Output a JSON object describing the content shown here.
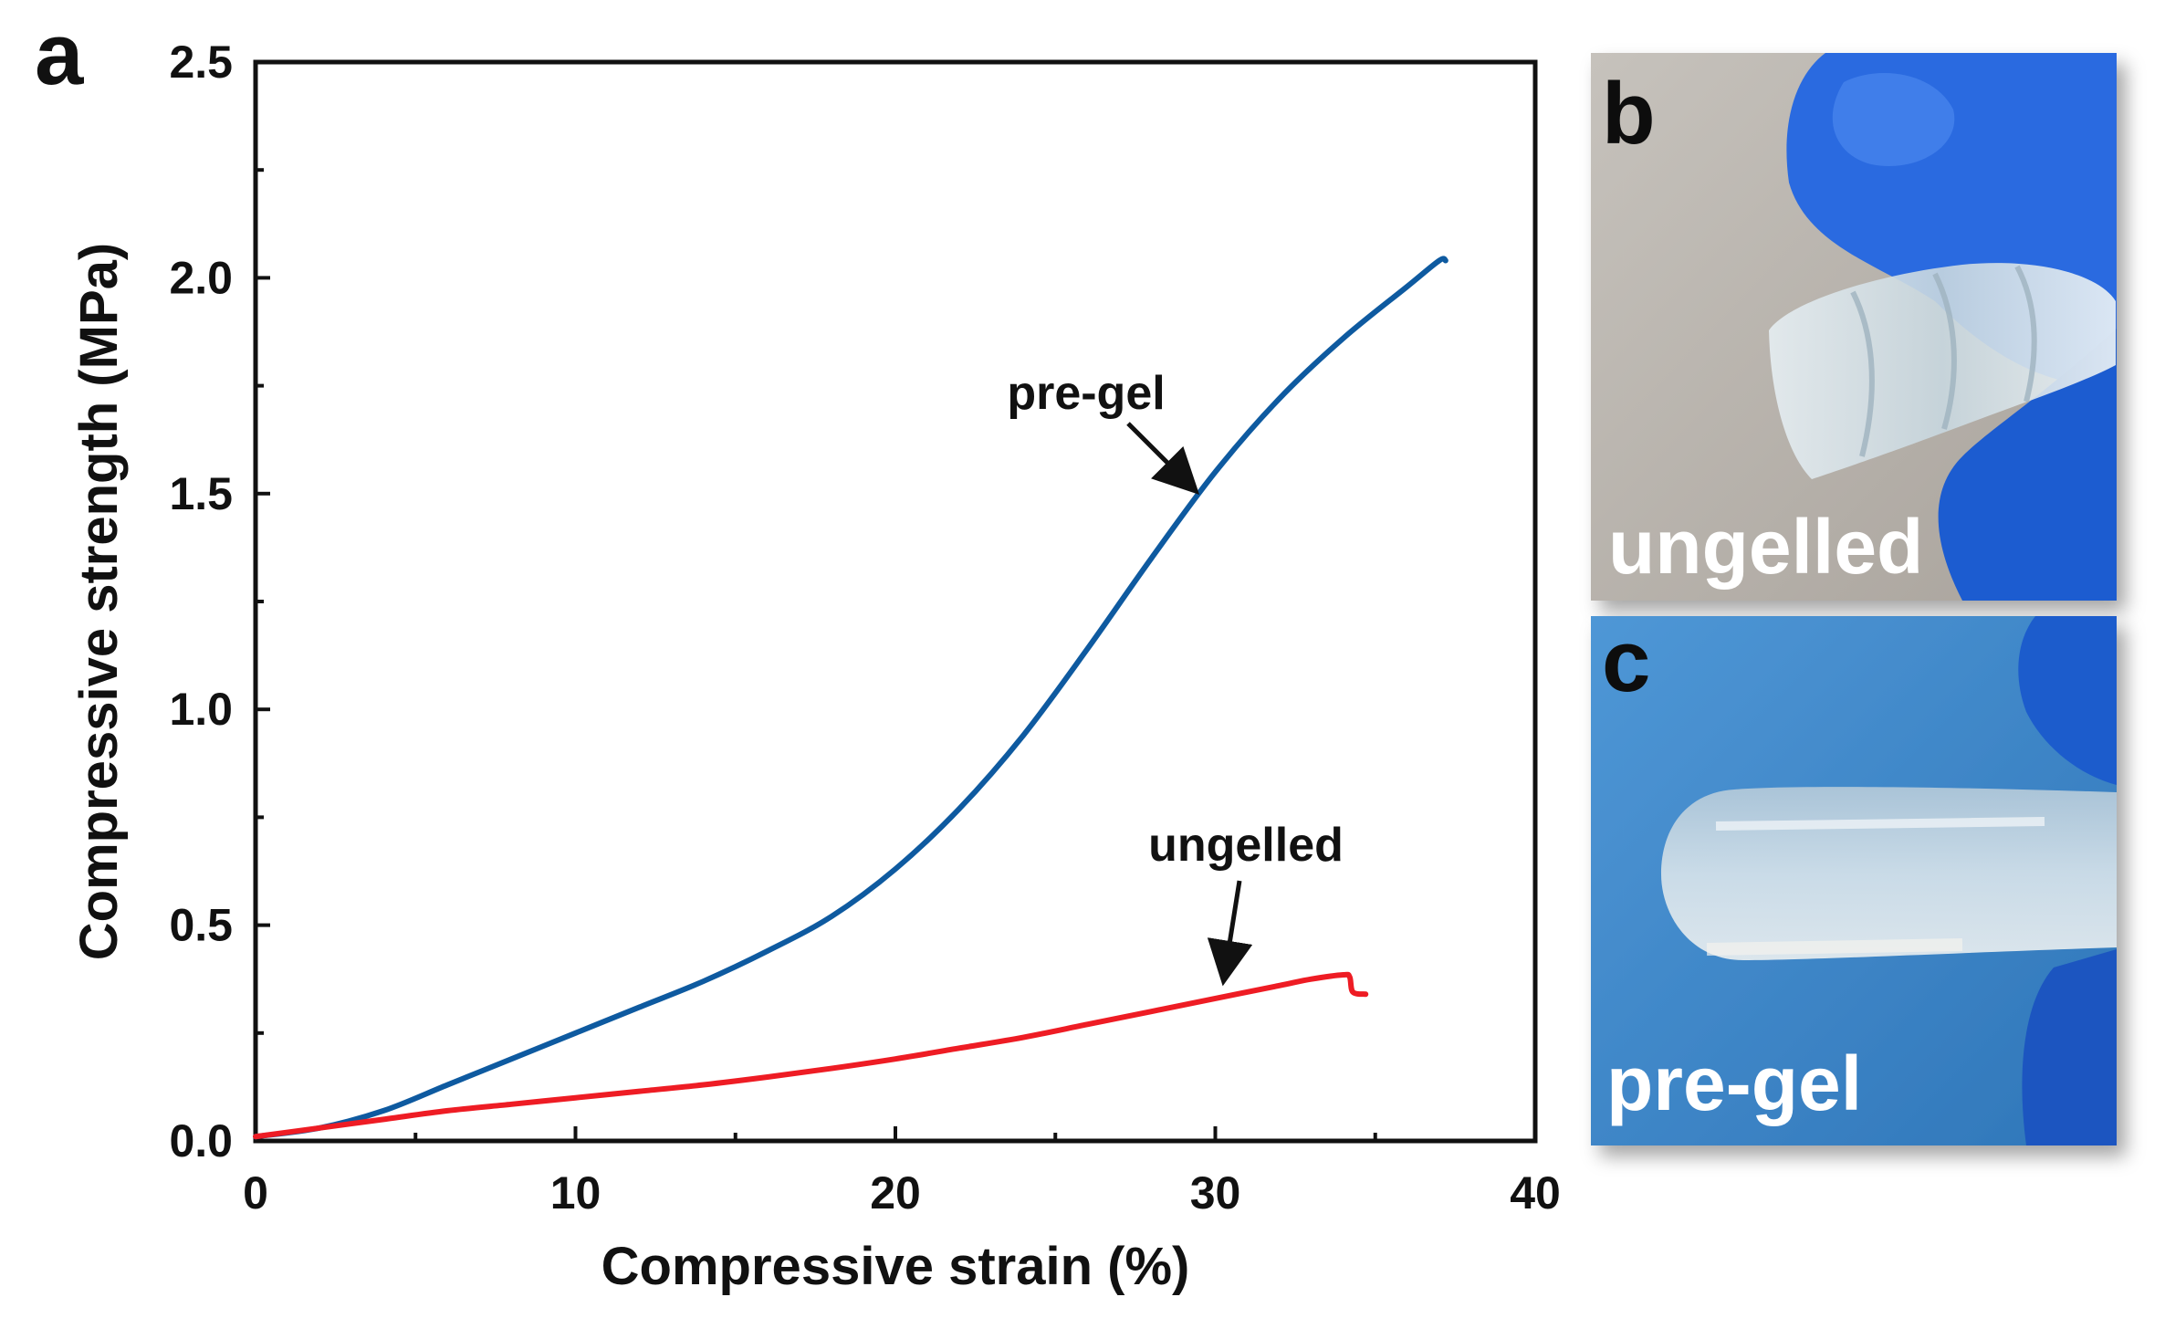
{
  "panels": {
    "a": "a",
    "b": "b",
    "c": "c"
  },
  "photos": {
    "b": {
      "caption": "ungelled"
    },
    "c": {
      "caption": "pre-gel"
    }
  },
  "colors": {
    "pre_gel": "#0e5aa0",
    "ungelled": "#ee1c24",
    "axis": "#111111",
    "glove": "#1f62d6",
    "background_b": "#b8b2aa",
    "background_c": "#3f86c8"
  },
  "chart_data": {
    "type": "line",
    "title": "",
    "xlabel": "Compressive strain (%)",
    "ylabel": "Compressive strength (MPa)",
    "xlim": [
      0,
      40
    ],
    "ylim": [
      0,
      2.5
    ],
    "xticks": [
      0,
      10,
      20,
      30,
      40
    ],
    "yticks": [
      0.0,
      0.5,
      1.0,
      1.5,
      2.0,
      2.5
    ],
    "xtick_labels": [
      "0",
      "10",
      "20",
      "30",
      "40"
    ],
    "ytick_labels": [
      "0.0",
      "0.5",
      "1.0",
      "1.5",
      "2.0",
      "2.5"
    ],
    "grid": false,
    "legend": "none",
    "series": [
      {
        "name": "pre-gel",
        "color": "#0e5aa0",
        "x": [
          0,
          2,
          4,
          6,
          8,
          10,
          12,
          14,
          16,
          18,
          20,
          22,
          24,
          26,
          28,
          30,
          32,
          34,
          36,
          37,
          37.2
        ],
        "y": [
          0.01,
          0.03,
          0.07,
          0.13,
          0.19,
          0.25,
          0.31,
          0.37,
          0.44,
          0.52,
          0.63,
          0.77,
          0.94,
          1.14,
          1.35,
          1.55,
          1.72,
          1.86,
          1.98,
          2.04,
          2.04
        ]
      },
      {
        "name": "ungelled",
        "color": "#ee1c24",
        "x": [
          0,
          2,
          4,
          6,
          8,
          10,
          12,
          14,
          16,
          18,
          20,
          22,
          24,
          26,
          28,
          30,
          32,
          33,
          34,
          34.2,
          34.3,
          34.7
        ],
        "y": [
          0.01,
          0.03,
          0.05,
          0.07,
          0.085,
          0.1,
          0.115,
          0.13,
          0.148,
          0.168,
          0.19,
          0.215,
          0.24,
          0.27,
          0.3,
          0.33,
          0.36,
          0.375,
          0.385,
          0.38,
          0.345,
          0.34
        ]
      }
    ],
    "annotations": [
      {
        "text": "pre-gel",
        "series": "pre-gel",
        "arrow_to": [
          29.2,
          1.52
        ]
      },
      {
        "text": "ungelled",
        "series": "ungelled",
        "arrow_to": [
          30.3,
          0.39
        ]
      }
    ]
  }
}
